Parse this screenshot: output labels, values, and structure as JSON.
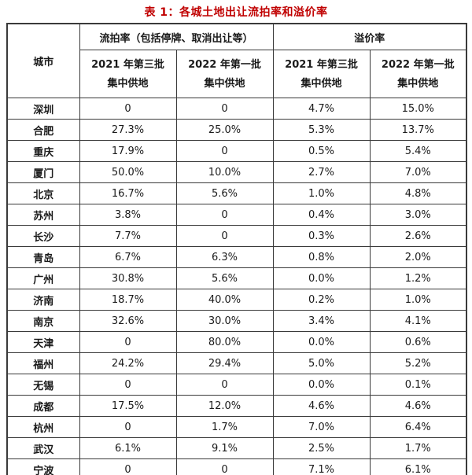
{
  "title": "表 1：各城土地出让流拍率和溢价率",
  "table": {
    "city_header": "城市",
    "group_headers": [
      "流拍率（包括停牌、取消出让等）",
      "溢价率"
    ],
    "sub_headers": [
      {
        "line1": "2021 年第三批",
        "line2": "集中供地"
      },
      {
        "line1": "2022 年第一批",
        "line2": "集中供地"
      },
      {
        "line1": "2021 年第三批",
        "line2": "集中供地"
      },
      {
        "line1": "2022 年第一批",
        "line2": "集中供地"
      }
    ],
    "rows": [
      {
        "city": "深圳",
        "values": [
          "0",
          "0",
          "4.7%",
          "15.0%"
        ]
      },
      {
        "city": "合肥",
        "values": [
          "27.3%",
          "25.0%",
          "5.3%",
          "13.7%"
        ]
      },
      {
        "city": "重庆",
        "values": [
          "17.9%",
          "0",
          "0.5%",
          "5.4%"
        ]
      },
      {
        "city": "厦门",
        "values": [
          "50.0%",
          "10.0%",
          "2.7%",
          "7.0%"
        ]
      },
      {
        "city": "北京",
        "values": [
          "16.7%",
          "5.6%",
          "1.0%",
          "4.8%"
        ]
      },
      {
        "city": "苏州",
        "values": [
          "3.8%",
          "0",
          "0.4%",
          "3.0%"
        ]
      },
      {
        "city": "长沙",
        "values": [
          "7.7%",
          "0",
          "0.3%",
          "2.6%"
        ]
      },
      {
        "city": "青岛",
        "values": [
          "6.7%",
          "6.3%",
          "0.8%",
          "2.0%"
        ]
      },
      {
        "city": "广州",
        "values": [
          "30.8%",
          "5.6%",
          "0.0%",
          "1.2%"
        ]
      },
      {
        "city": "济南",
        "values": [
          "18.7%",
          "40.0%",
          "0.2%",
          "1.0%"
        ]
      },
      {
        "city": "南京",
        "values": [
          "32.6%",
          "30.0%",
          "3.4%",
          "4.1%"
        ]
      },
      {
        "city": "天津",
        "values": [
          "0",
          "80.0%",
          "0.0%",
          "0.6%"
        ]
      },
      {
        "city": "福州",
        "values": [
          "24.2%",
          "29.4%",
          "5.0%",
          "5.2%"
        ]
      },
      {
        "city": "无锡",
        "values": [
          "0",
          "0",
          "0.0%",
          "0.1%"
        ]
      },
      {
        "city": "成都",
        "values": [
          "17.5%",
          "12.0%",
          "4.6%",
          "4.6%"
        ]
      },
      {
        "city": "杭州",
        "values": [
          "0",
          "1.7%",
          "7.0%",
          "6.4%"
        ]
      },
      {
        "city": "武汉",
        "values": [
          "6.1%",
          "9.1%",
          "2.5%",
          "1.7%"
        ]
      },
      {
        "city": "宁波",
        "values": [
          "0",
          "0",
          "7.1%",
          "6.1%"
        ]
      }
    ]
  },
  "colors": {
    "title_red": "#c00000",
    "border": "#3a3a3a",
    "text": "#1a1a1a"
  }
}
